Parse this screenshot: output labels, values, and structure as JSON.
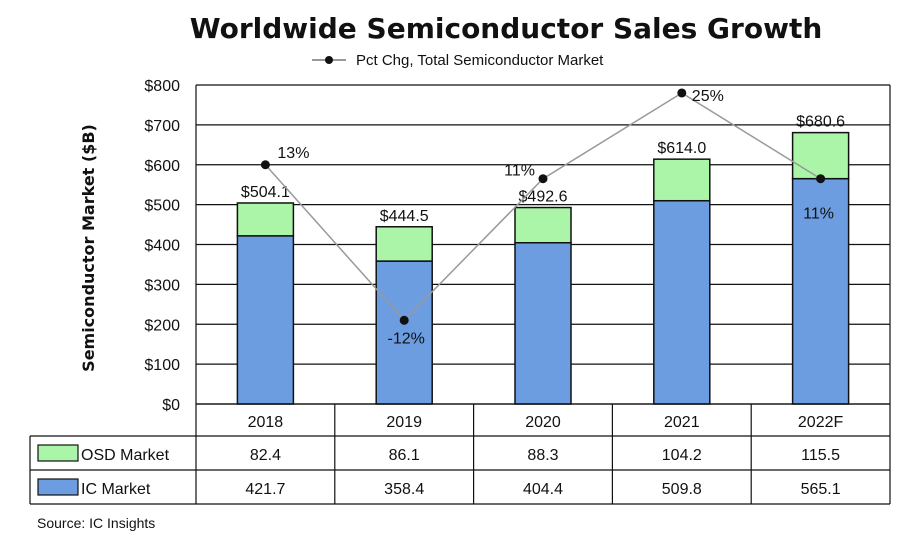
{
  "chart_data": {
    "type": "bar",
    "stacked": true,
    "title": "Worldwide Semiconductor Sales Growth",
    "ylabel": "Semiconductor Market ($B)",
    "ylim": [
      0,
      800
    ],
    "yticks": [
      "$0",
      "$100",
      "$200",
      "$300",
      "$400",
      "$500",
      "$600",
      "$700",
      "$800"
    ],
    "grid": true,
    "categories": [
      "2018",
      "2019",
      "2020",
      "2021",
      "2022F"
    ],
    "series": [
      {
        "name": "IC Market",
        "values": [
          421.7,
          358.4,
          404.4,
          509.8,
          565.1
        ],
        "color": "#6b9de0"
      },
      {
        "name": "OSD Market",
        "values": [
          82.4,
          86.1,
          88.3,
          104.2,
          115.5
        ],
        "color": "#aaf5a8"
      }
    ],
    "totals": [
      "$504.1",
      "$444.5",
      "$492.6",
      "$614.0",
      "$680.6"
    ],
    "line": {
      "name": "Pct Chg, Total Semiconductor Market",
      "values": [
        13,
        -12,
        11,
        25,
        11
      ],
      "labels": [
        "13%",
        "-12%",
        "11%",
        "25%",
        "11%"
      ],
      "plot_y": [
        600,
        210,
        565,
        780,
        565
      ],
      "color": "#999999"
    },
    "table": {
      "rows": [
        {
          "label": "OSD Market",
          "cells": [
            "82.4",
            "86.1",
            "88.3",
            "104.2",
            "115.5"
          ]
        },
        {
          "label": "IC Market",
          "cells": [
            "421.7",
            "358.4",
            "404.4",
            "509.8",
            "565.1"
          ]
        }
      ]
    },
    "legend_placement": "top-center",
    "source": "Source: IC Insights"
  }
}
